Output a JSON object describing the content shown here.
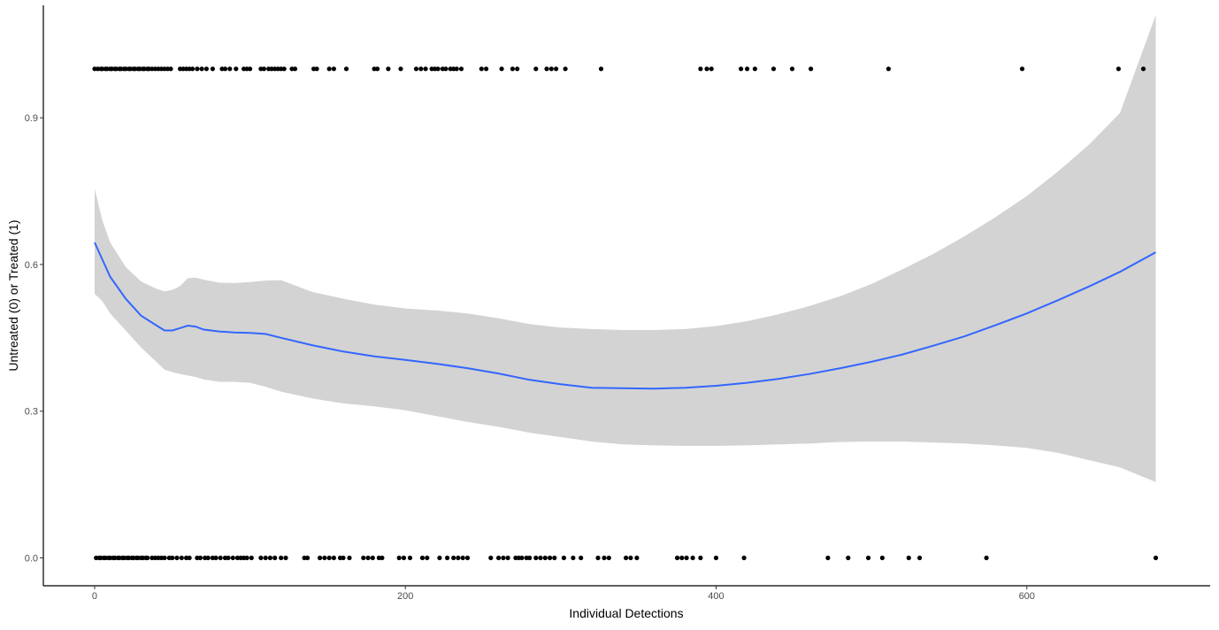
{
  "chart_data": {
    "type": "scatter",
    "title": "",
    "xlabel": "Individual Detections",
    "ylabel": "Untreated (0) or Treated (1)",
    "xlim": [
      -33,
      718
    ],
    "ylim": [
      -0.057,
      1.13
    ],
    "x_ticks": [
      {
        "value": 0,
        "label": "0"
      },
      {
        "value": 200,
        "label": "200"
      },
      {
        "value": 400,
        "label": "400"
      },
      {
        "value": 600,
        "label": "600"
      }
    ],
    "y_ticks": [
      {
        "value": 0,
        "label": "0.0"
      },
      {
        "value": 0.3,
        "label": "0.3"
      },
      {
        "value": 0.6,
        "label": "0.6"
      },
      {
        "value": 0.9,
        "label": "0.9"
      }
    ],
    "grid": false,
    "legend": "none",
    "point_color": "#000000",
    "smooth_color": "#3366FF",
    "band_color": "#D3D3D3",
    "points": {
      "treated_x": [
        0,
        2,
        4,
        5,
        7,
        8,
        10,
        11,
        13,
        14,
        16,
        17,
        19,
        20,
        22,
        23,
        25,
        26,
        28,
        29,
        31,
        32,
        34,
        35,
        37,
        39,
        41,
        43,
        45,
        47,
        49,
        55,
        57,
        59,
        61,
        63,
        66,
        69,
        72,
        76,
        82,
        84,
        87,
        91,
        96,
        98,
        100,
        107,
        109,
        112,
        114,
        116,
        118,
        120,
        122,
        127,
        129,
        141,
        143,
        151,
        154,
        162,
        180,
        182,
        189,
        197,
        207,
        210,
        213,
        217,
        219,
        221,
        224,
        226,
        229,
        231,
        233,
        236,
        249,
        252,
        262,
        269,
        272,
        284,
        291,
        294,
        297,
        303,
        326,
        390,
        394,
        397,
        416,
        420,
        425,
        437,
        449,
        461,
        511,
        597,
        659,
        675
      ],
      "untreated_x": [
        1,
        3,
        4,
        6,
        7,
        9,
        10,
        12,
        13,
        15,
        16,
        18,
        19,
        21,
        22,
        24,
        25,
        27,
        28,
        30,
        31,
        33,
        34,
        37,
        39,
        41,
        43,
        45,
        48,
        50,
        53,
        56,
        59,
        61,
        66,
        68,
        71,
        73,
        76,
        78,
        81,
        84,
        86,
        89,
        92,
        94,
        96,
        98,
        101,
        107,
        110,
        113,
        116,
        120,
        123,
        135,
        137,
        145,
        148,
        151,
        154,
        158,
        160,
        164,
        173,
        176,
        179,
        183,
        185,
        196,
        199,
        203,
        211,
        214,
        222,
        227,
        231,
        234,
        237,
        240,
        255,
        260,
        263,
        266,
        271,
        273,
        275,
        278,
        280,
        284,
        287,
        290,
        293,
        296,
        302,
        308,
        313,
        324,
        328,
        331,
        342,
        345,
        349,
        375,
        378,
        381,
        385,
        390,
        400,
        418,
        472,
        485,
        498,
        507,
        524,
        531,
        574,
        683
      ]
    },
    "smooth": {
      "x": [
        0,
        5,
        10,
        20,
        30,
        40,
        45,
        50,
        55,
        60,
        65,
        70,
        80,
        90,
        100,
        110,
        120,
        140,
        160,
        180,
        200,
        220,
        240,
        260,
        280,
        300,
        320,
        340,
        360,
        380,
        400,
        420,
        440,
        460,
        480,
        500,
        520,
        540,
        560,
        580,
        600,
        620,
        640,
        660,
        683
      ],
      "y": [
        0.645,
        0.61,
        0.575,
        0.53,
        0.495,
        0.475,
        0.465,
        0.465,
        0.47,
        0.475,
        0.473,
        0.467,
        0.463,
        0.461,
        0.46,
        0.458,
        0.45,
        0.435,
        0.422,
        0.412,
        0.405,
        0.397,
        0.388,
        0.377,
        0.364,
        0.355,
        0.348,
        0.347,
        0.346,
        0.348,
        0.352,
        0.358,
        0.366,
        0.376,
        0.388,
        0.401,
        0.416,
        0.434,
        0.453,
        0.476,
        0.5,
        0.527,
        0.555,
        0.585,
        0.625
      ],
      "upper": [
        0.755,
        0.69,
        0.645,
        0.595,
        0.565,
        0.55,
        0.545,
        0.548,
        0.556,
        0.572,
        0.573,
        0.569,
        0.563,
        0.562,
        0.564,
        0.567,
        0.568,
        0.544,
        0.53,
        0.518,
        0.51,
        0.506,
        0.5,
        0.49,
        0.478,
        0.471,
        0.468,
        0.466,
        0.466,
        0.468,
        0.474,
        0.484,
        0.498,
        0.515,
        0.535,
        0.56,
        0.59,
        0.622,
        0.658,
        0.697,
        0.74,
        0.79,
        0.845,
        0.91,
        1.11
      ],
      "lower": [
        0.54,
        0.525,
        0.5,
        0.465,
        0.43,
        0.4,
        0.385,
        0.38,
        0.376,
        0.373,
        0.37,
        0.365,
        0.36,
        0.36,
        0.358,
        0.35,
        0.34,
        0.326,
        0.316,
        0.31,
        0.302,
        0.29,
        0.278,
        0.268,
        0.256,
        0.247,
        0.238,
        0.232,
        0.23,
        0.229,
        0.229,
        0.23,
        0.232,
        0.234,
        0.237,
        0.238,
        0.238,
        0.236,
        0.234,
        0.23,
        0.225,
        0.215,
        0.2,
        0.185,
        0.155
      ]
    }
  }
}
